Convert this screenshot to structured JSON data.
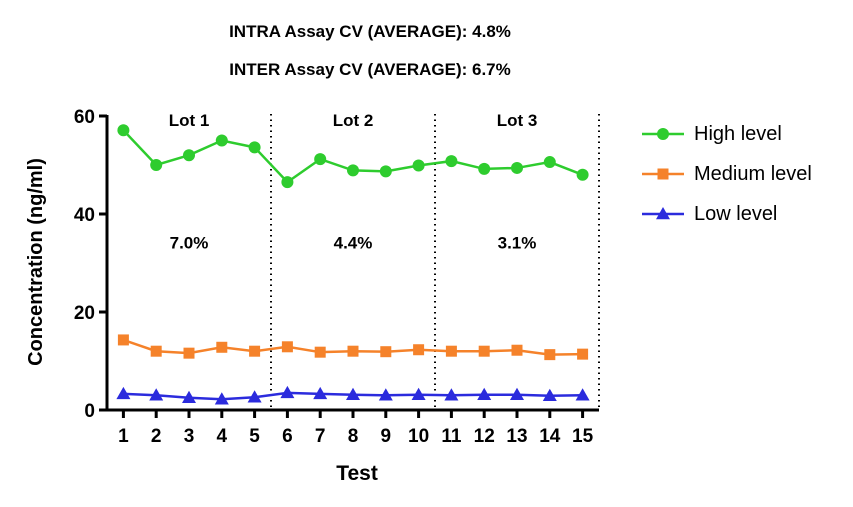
{
  "chart_data": {
    "type": "line",
    "subtitles": [
      "INTRA Assay CV (AVERAGE): 4.8%",
      "INTER Assay CV (AVERAGE): 6.7%"
    ],
    "xlabel": "Test",
    "ylabel": "Concentration (ng/ml)",
    "x": [
      1,
      2,
      3,
      4,
      5,
      6,
      7,
      8,
      9,
      10,
      11,
      12,
      13,
      14,
      15
    ],
    "xticks": [
      "1",
      "2",
      "3",
      "4",
      "5",
      "6",
      "7",
      "8",
      "9",
      "10",
      "11",
      "12",
      "13",
      "14",
      "15"
    ],
    "ylim": [
      0,
      60
    ],
    "yticks": [
      0,
      20,
      40,
      60
    ],
    "grid": false,
    "legend_position": "right",
    "series": [
      {
        "name": "High level",
        "color": "#2ecc2e",
        "marker": "circle",
        "values": [
          57.1,
          50.0,
          52.0,
          55.0,
          53.6,
          46.5,
          51.2,
          48.9,
          48.7,
          49.9,
          50.8,
          49.2,
          49.4,
          50.6,
          48.0
        ]
      },
      {
        "name": "Medium level",
        "color": "#f5822a",
        "marker": "square",
        "values": [
          14.3,
          12.0,
          11.6,
          12.8,
          12.0,
          12.9,
          11.8,
          12.0,
          11.9,
          12.3,
          12.0,
          12.0,
          12.2,
          11.3,
          11.4
        ]
      },
      {
        "name": "Low level",
        "color": "#2b2bdd",
        "marker": "triangle",
        "values": [
          3.3,
          3.0,
          2.5,
          2.2,
          2.6,
          3.5,
          3.3,
          3.1,
          3.0,
          3.1,
          3.0,
          3.1,
          3.1,
          2.9,
          3.0
        ]
      }
    ],
    "lots": [
      {
        "label": "Lot 1",
        "cv": "7.0%",
        "start": 1,
        "end": 5
      },
      {
        "label": "Lot 2",
        "cv": "4.4%",
        "start": 6,
        "end": 10
      },
      {
        "label": "Lot 3",
        "cv": "3.1%",
        "start": 11,
        "end": 15
      }
    ],
    "lot_dividers": [
      5.5,
      10.5,
      15.5
    ]
  }
}
